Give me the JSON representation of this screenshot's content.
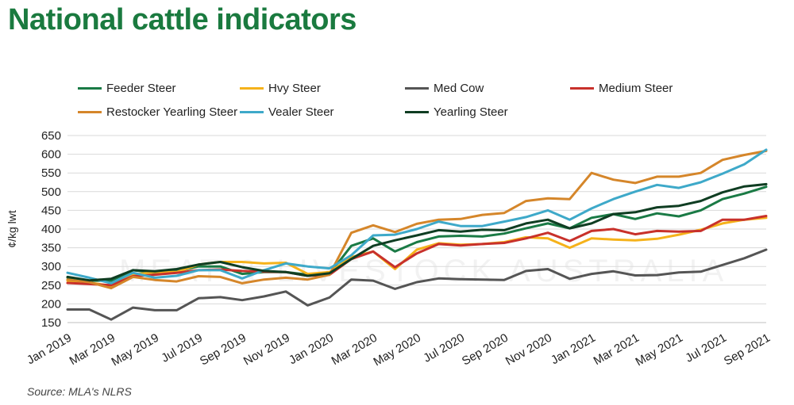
{
  "page": {
    "title": "National cattle indicators",
    "source": "Source: MLA's NLRS",
    "watermark_text": "MEAT & LIVESTOCK AUSTRALIA"
  },
  "chart_data": {
    "type": "line",
    "title": "",
    "xlabel": "",
    "ylabel": "¢/kg lwt",
    "ylim": [
      150,
      650
    ],
    "yticks": [
      150,
      200,
      250,
      300,
      350,
      400,
      450,
      500,
      550,
      600,
      650
    ],
    "x": [
      "Jan 2019",
      "Feb 2019",
      "Mar 2019",
      "Apr 2019",
      "May 2019",
      "Jun 2019",
      "Jul 2019",
      "Aug 2019",
      "Sep 2019",
      "Oct 2019",
      "Nov 2019",
      "Dec 2019",
      "Jan 2020",
      "Feb 2020",
      "Mar 2020",
      "Apr 2020",
      "May 2020",
      "Jun 2020",
      "Jul 2020",
      "Aug 2020",
      "Sep 2020",
      "Oct 2020",
      "Nov 2020",
      "Dec 2020",
      "Jan 2021",
      "Feb 2021",
      "Mar 2021",
      "Apr 2021",
      "May 2021",
      "Jun 2021",
      "Jul 2021",
      "Aug 2021",
      "Sep 2021"
    ],
    "xtick_labels": [
      "Jan 2019",
      "Mar 2019",
      "May 2019",
      "Jul 2019",
      "Sep 2019",
      "Nov 2019",
      "Jan 2020",
      "Mar 2020",
      "May 2020",
      "Jul 2020",
      "Sep 2020",
      "Nov 2020",
      "Jan 2021",
      "Mar 2021",
      "May 2021",
      "Jul 2021",
      "Sep 2021"
    ],
    "grid": true,
    "legend_position": "top",
    "series": [
      {
        "name": "Feeder Steer",
        "color": "#1a7a45",
        "values": [
          270,
          262,
          262,
          290,
          283,
          287,
          300,
          300,
          280,
          285,
          285,
          278,
          280,
          355,
          375,
          340,
          365,
          380,
          382,
          380,
          388,
          402,
          415,
          402,
          430,
          440,
          427,
          442,
          434,
          450,
          480,
          495,
          513
        ]
      },
      {
        "name": "Hvy Steer",
        "color": "#f5b21b",
        "values": [
          262,
          257,
          248,
          278,
          285,
          285,
          305,
          312,
          312,
          308,
          310,
          280,
          285,
          325,
          340,
          293,
          345,
          362,
          358,
          360,
          365,
          378,
          375,
          350,
          375,
          372,
          370,
          374,
          385,
          398,
          415,
          425,
          430
        ]
      },
      {
        "name": "Med Cow",
        "color": "#555555",
        "values": [
          185,
          185,
          158,
          190,
          183,
          183,
          215,
          218,
          210,
          220,
          233,
          196,
          217,
          265,
          262,
          240,
          258,
          268,
          266,
          265,
          264,
          288,
          293,
          267,
          280,
          287,
          276,
          277,
          284,
          286,
          304,
          322,
          345
        ]
      },
      {
        "name": "Medium Steer",
        "color": "#c8312b",
        "values": [
          256,
          253,
          250,
          274,
          278,
          283,
          290,
          292,
          288,
          286,
          285,
          275,
          278,
          320,
          340,
          298,
          335,
          360,
          356,
          360,
          363,
          375,
          390,
          368,
          395,
          400,
          386,
          395,
          393,
          395,
          425,
          425,
          435
        ]
      },
      {
        "name": "Restocker Yearling Steer",
        "color": "#d5862a",
        "values": [
          265,
          258,
          242,
          272,
          264,
          260,
          274,
          272,
          255,
          265,
          270,
          265,
          278,
          390,
          410,
          392,
          414,
          425,
          427,
          438,
          443,
          475,
          482,
          480,
          550,
          532,
          523,
          540,
          540,
          550,
          585,
          598,
          609
        ]
      },
      {
        "name": "Vealer Steer",
        "color": "#3ea9c9",
        "values": [
          283,
          270,
          255,
          283,
          270,
          275,
          290,
          290,
          268,
          290,
          308,
          300,
          295,
          330,
          383,
          385,
          400,
          420,
          408,
          408,
          420,
          432,
          450,
          425,
          455,
          480,
          500,
          518,
          510,
          525,
          548,
          573,
          612
        ]
      },
      {
        "name": "Yearling Steer",
        "color": "#0f3d22",
        "values": [
          272,
          263,
          267,
          290,
          287,
          293,
          305,
          312,
          298,
          288,
          285,
          275,
          282,
          320,
          355,
          370,
          383,
          397,
          393,
          398,
          397,
          415,
          425,
          402,
          415,
          440,
          445,
          458,
          462,
          475,
          498,
          514,
          520
        ]
      }
    ]
  }
}
